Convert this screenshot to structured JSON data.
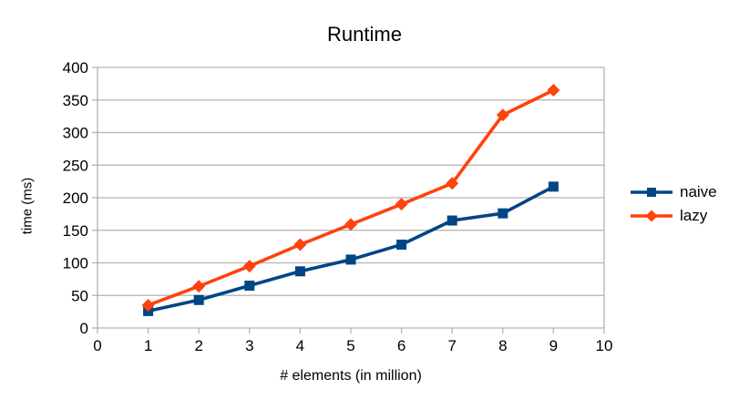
{
  "chart_data": {
    "type": "line",
    "title": "Runtime",
    "xlabel": "# elements (in million)",
    "ylabel": "time (ms)",
    "x": [
      1,
      2,
      3,
      4,
      5,
      6,
      7,
      8,
      9
    ],
    "series": [
      {
        "name": "naive",
        "marker": "square",
        "color": "#004586",
        "values": [
          26,
          43,
          65,
          87,
          105,
          128,
          165,
          176,
          217
        ]
      },
      {
        "name": "lazy",
        "marker": "diamond",
        "color": "#ff420e",
        "values": [
          35,
          64,
          95,
          128,
          159,
          190,
          222,
          327,
          365
        ]
      }
    ],
    "xlim": [
      0,
      10
    ],
    "xtick_step": 1,
    "ylim": [
      0,
      400
    ],
    "ytick_step": 50,
    "grid": "horizontal",
    "legend_position": "right",
    "colors": {
      "gridline": "#b3b3b3",
      "axis": "#b3b3b3",
      "text": "#000000",
      "background": "#ffffff"
    }
  }
}
